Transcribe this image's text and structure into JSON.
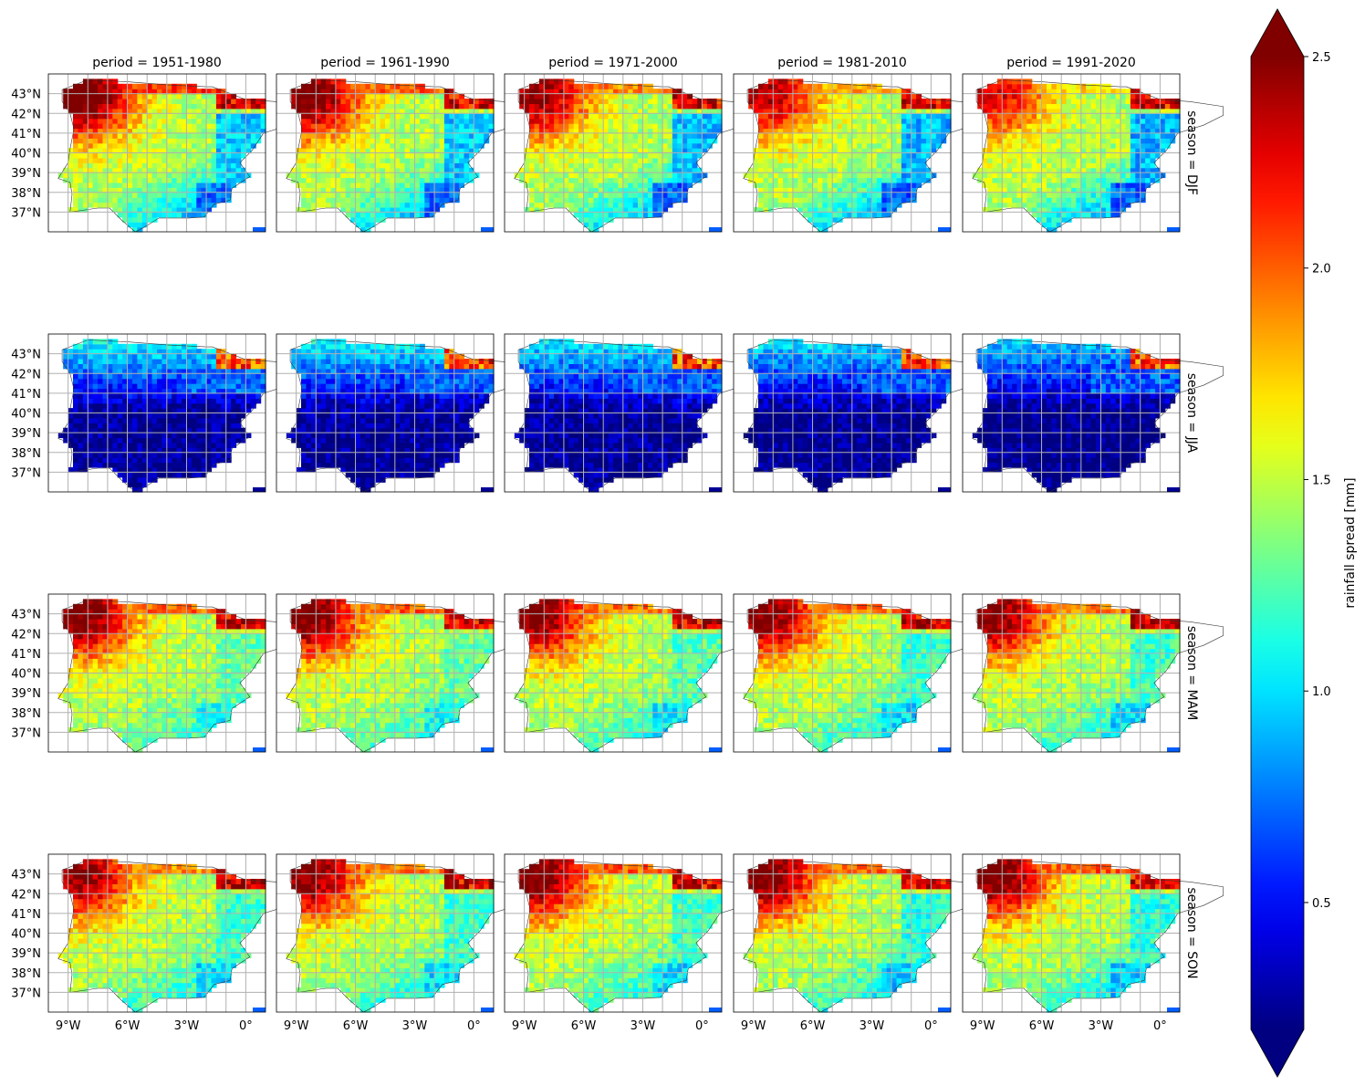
{
  "chart_data": {
    "type": "heatmap",
    "title": "",
    "colorbar": {
      "label": "rainfall spread [mm]",
      "vmin": 0.2,
      "vmax": 2.5,
      "ticks": [
        "0.5",
        "1.0",
        "1.5",
        "2.0",
        "2.5"
      ],
      "tick_values": [
        0.5,
        1.0,
        1.5,
        2.0,
        2.5
      ],
      "extend": "both",
      "colormap": "jet"
    },
    "col_facet": {
      "labels": [
        "period = 1951-1980",
        "period = 1961-1990",
        "period = 1971-2000",
        "period = 1981-2010",
        "period = 1991-2020"
      ]
    },
    "row_facet": {
      "labels": [
        "season = DJF",
        "season = JJA",
        "season = MAM",
        "season = SON"
      ]
    },
    "x_axis": {
      "ticks": [
        "9°W",
        "6°W",
        "3°W",
        "0°"
      ],
      "tick_values": [
        -9,
        -6,
        -3,
        0
      ],
      "range": [
        -10,
        1.0
      ]
    },
    "y_axis": {
      "ticks": [
        "43°N",
        "42°N",
        "41°N",
        "40°N",
        "39°N",
        "38°N",
        "37°N"
      ],
      "tick_values": [
        43,
        42,
        41,
        40,
        39,
        38,
        37
      ],
      "range": [
        36.0,
        44.0
      ]
    },
    "grid": true,
    "series": [
      {
        "season": "DJF",
        "base_level": [
          2.3,
          2.2,
          2.1,
          2.0,
          1.9
        ],
        "southeast_level": [
          0.75,
          0.75,
          0.72,
          0.7,
          0.7
        ]
      },
      {
        "season": "JJA",
        "base_level": [
          0.45,
          0.45,
          0.42,
          0.4,
          0.35
        ],
        "southeast_level": [
          0.25,
          0.25,
          0.25,
          0.22,
          0.2
        ]
      },
      {
        "season": "MAM",
        "base_level": [
          2.2,
          2.2,
          2.15,
          2.15,
          2.15
        ],
        "southeast_level": [
          1.1,
          1.1,
          1.05,
          1.0,
          1.0
        ]
      },
      {
        "season": "SON",
        "base_level": [
          2.1,
          2.15,
          2.2,
          2.2,
          2.2
        ],
        "southeast_level": [
          1.0,
          1.0,
          1.0,
          0.95,
          0.95
        ]
      }
    ]
  },
  "colors": {
    "frame": "#000000",
    "grid": "#b0b0b0",
    "coast": "#333333"
  }
}
